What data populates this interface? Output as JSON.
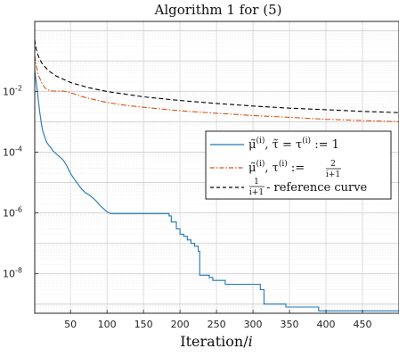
{
  "chart_data": {
    "type": "line",
    "title": "Algorithm 1 for (5)",
    "xlabel": "Iteration/i",
    "ylabel": "",
    "xlim": [
      1,
      500
    ],
    "ylim": [
      5e-10,
      2
    ],
    "y_scale": "log",
    "grid": true,
    "legend_position": "middle-right",
    "x_ticks": [
      50,
      100,
      150,
      200,
      250,
      300,
      350,
      400,
      450
    ],
    "y_ticks": [
      {
        "value": 0.01,
        "base": "10",
        "exp": "-2"
      },
      {
        "value": 0.0001,
        "base": "10",
        "exp": "-4"
      },
      {
        "value": 1e-06,
        "base": "10",
        "exp": "-6"
      },
      {
        "value": 1e-08,
        "base": "10",
        "exp": "-8"
      }
    ],
    "series": [
      {
        "name": "μ̃(i), τ̃ = τ(i) := 1",
        "color": "#1f77b4",
        "dash": "solid",
        "x": [
          1,
          3,
          5,
          8,
          10,
          12,
          14,
          16,
          18,
          20,
          22,
          24,
          26,
          28,
          30,
          35,
          40,
          45,
          50,
          55,
          60,
          65,
          70,
          75,
          80,
          85,
          90,
          95,
          100,
          105,
          110,
          140,
          170,
          180,
          185,
          188,
          195,
          200,
          205,
          210,
          215,
          220,
          225,
          227,
          240,
          245,
          260,
          262,
          300,
          310,
          315,
          340,
          345,
          370,
          385,
          390,
          410,
          430,
          500
        ],
        "y": [
          0.05,
          0.02,
          0.008,
          0.002,
          0.0009,
          0.0005,
          0.00035,
          0.00025,
          0.0002,
          0.00017,
          0.00015,
          0.00013,
          0.00011,
          0.0001,
          9e-05,
          7e-05,
          5.5e-05,
          3.5e-05,
          2e-05,
          1.3e-05,
          9e-06,
          6.2e-06,
          4.7e-06,
          4e-06,
          3.2e-06,
          2.5e-06,
          1.8e-06,
          1.4e-06,
          1.1e-06,
          9.5e-07,
          9.5e-07,
          9.5e-07,
          9.5e-07,
          9.5e-07,
          8e-07,
          5e-07,
          3e-07,
          2e-07,
          1.7e-07,
          1.3e-07,
          1e-07,
          8e-08,
          5.5e-08,
          9e-09,
          7.5e-09,
          6e-09,
          6e-09,
          4.5e-09,
          4.5e-09,
          3e-09,
          1e-09,
          1e-09,
          8e-10,
          8e-10,
          8e-10,
          6e-10,
          6e-10,
          6e-10,
          6e-10
        ]
      },
      {
        "name": "μ̃(i), τ(i) := 2/(i+1)",
        "color": "#d95319",
        "dash": "dashdot",
        "x": [
          1,
          3,
          6,
          10,
          15,
          20,
          25,
          30,
          35,
          40,
          45,
          50,
          60,
          70,
          80,
          100,
          125,
          150,
          200,
          250,
          300,
          350,
          400,
          450,
          500
        ],
        "y": [
          0.15,
          0.07,
          0.035,
          0.02,
          0.013,
          0.011,
          0.0103,
          0.0102,
          0.0102,
          0.0102,
          0.0098,
          0.009,
          0.0075,
          0.0063,
          0.0055,
          0.0043,
          0.0035,
          0.003,
          0.0023,
          0.0019,
          0.0016,
          0.0014,
          0.0012,
          0.0011,
          0.001
        ]
      },
      {
        "name": "1/(i+1) - reference curve",
        "color": "#000000",
        "dash": "dashed",
        "x": [
          1,
          2,
          3,
          5,
          8,
          12,
          20,
          30,
          50,
          75,
          100,
          150,
          200,
          250,
          300,
          350,
          400,
          450,
          500
        ],
        "y": [
          0.5,
          0.333,
          0.25,
          0.1667,
          0.1111,
          0.0769,
          0.0476,
          0.0323,
          0.0196,
          0.0132,
          0.0099,
          0.0066,
          0.005,
          0.004,
          0.0033,
          0.0028,
          0.0025,
          0.0022,
          0.002
        ]
      }
    ]
  },
  "legend": {
    "entry1": {
      "main": "μ̃",
      "sup": "(i)",
      "mid": ", τ̃ = τ",
      "sup2": "(i)",
      "end": " := 1"
    },
    "entry2": {
      "main": "μ̃",
      "sup": "(i)",
      "mid": ", τ",
      "sup2": "(i)",
      "end": " := ",
      "num": "2",
      "den": "i+1"
    },
    "entry3": {
      "num": "1",
      "den": "i+1",
      "end": " - reference curve"
    }
  }
}
